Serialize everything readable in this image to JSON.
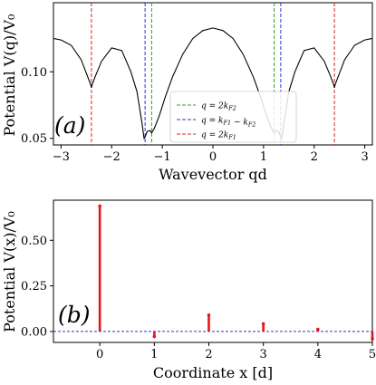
{
  "chart_data": [
    {
      "type": "line",
      "panel_label": "(a)",
      "xlabel": "Wavevector qd",
      "ylabel": "Potential V(q)/V₀",
      "xlim": [
        -3.15,
        3.15
      ],
      "ylim": [
        0.045,
        0.152
      ],
      "x_ticks": [
        -3,
        -2,
        -1,
        0,
        1,
        2,
        3
      ],
      "x_tick_labels": [
        "−3",
        "−2",
        "−1",
        "0",
        "1",
        "2",
        "3"
      ],
      "y_ticks": [
        0.05,
        0.1
      ],
      "y_tick_labels": [
        "0.05",
        "0.10"
      ],
      "grid": false,
      "legend_position": "lower-center",
      "curve": {
        "color": "#000000",
        "x": [
          0.0,
          0.2,
          0.4,
          0.6,
          0.8,
          0.95,
          1.05,
          1.15,
          1.21,
          1.25,
          1.3,
          1.34,
          1.36,
          1.4,
          1.5,
          1.62,
          1.8,
          2.0,
          2.2,
          2.32,
          2.39,
          2.4,
          2.41,
          2.48,
          2.6,
          2.8,
          3.0,
          3.14
        ],
        "y": [
          0.133,
          0.131,
          0.125,
          0.113,
          0.096,
          0.08,
          0.068,
          0.058,
          0.054,
          0.056,
          0.055,
          0.051,
          0.05,
          0.061,
          0.085,
          0.1,
          0.116,
          0.118,
          0.108,
          0.097,
          0.09,
          0.088,
          0.09,
          0.097,
          0.109,
          0.12,
          0.124,
          0.125
        ]
      },
      "vlines": [
        {
          "label": "q = 2k_F2",
          "color": "#2ca02c",
          "x": [
            -1.21,
            1.21
          ]
        },
        {
          "label": "q = k_F1 − k_F2",
          "color": "#3333cc",
          "x": [
            -1.34,
            1.34
          ]
        },
        {
          "label": "q = 2k_F1",
          "color": "#d62728",
          "x": [
            -2.4,
            2.4
          ]
        }
      ],
      "legend": [
        {
          "sym": "q",
          "eq": " = 2k",
          "sub": "F2",
          "color": "#2ca02c"
        },
        {
          "sym": "q",
          "eq": " = k",
          "sub": "F1",
          "eq2": " − k",
          "sub2": "F2",
          "color": "#3333cc"
        },
        {
          "sym": "q",
          "eq": " = 2k",
          "sub": "F1",
          "color": "#d62728"
        }
      ]
    },
    {
      "type": "bar",
      "panel_label": "(b)",
      "xlabel": "Coordinate x [d]",
      "ylabel": "Potential V(x)/V₀",
      "xlim": [
        -0.85,
        5.0
      ],
      "ylim": [
        -0.06,
        0.72
      ],
      "x_ticks": [
        0,
        1,
        2,
        3,
        4,
        5
      ],
      "x_tick_labels": [
        "0",
        "1",
        "2",
        "3",
        "4",
        "5"
      ],
      "y_ticks": [
        0.0,
        0.25,
        0.5
      ],
      "y_tick_labels": [
        "0.00",
        "0.25",
        "0.50"
      ],
      "grid": false,
      "baseline_color": "#3333cc",
      "bar_color": "#e8141c",
      "x": [
        0,
        1,
        2,
        3,
        4,
        5
      ],
      "values": [
        0.688,
        -0.028,
        0.09,
        0.042,
        0.012,
        -0.04
      ]
    }
  ]
}
